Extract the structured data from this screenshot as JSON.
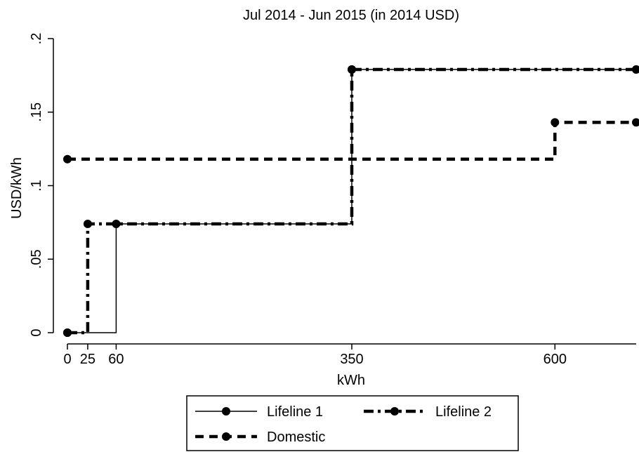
{
  "chart_data": {
    "type": "line",
    "title": "Jul 2014 - Jun 2015 (in 2014 USD)",
    "xlabel": "kWh",
    "ylabel": "USD/kWh",
    "xlim": [
      0,
      700
    ],
    "ylim": [
      0,
      0.2
    ],
    "x_ticks": [
      0,
      25,
      60,
      350,
      600
    ],
    "x_tick_labels": [
      "0",
      "25",
      "60",
      "350",
      "600"
    ],
    "y_ticks": [
      0,
      0.05,
      0.1,
      0.15,
      0.2
    ],
    "y_tick_labels": [
      "0",
      ".05",
      ".1",
      ".15",
      ".2"
    ],
    "grid": false,
    "legend_position": "bottom",
    "series": [
      {
        "name": "Lifeline 1",
        "style": "solid",
        "color": "#000000",
        "points": [
          [
            0,
            0
          ],
          [
            60,
            0.074
          ],
          [
            350,
            0.179
          ],
          [
            700,
            0.179
          ]
        ],
        "step_path": [
          [
            0,
            0
          ],
          [
            60,
            0
          ],
          [
            60,
            0.074
          ],
          [
            350,
            0.074
          ],
          [
            350,
            0.179
          ],
          [
            700,
            0.179
          ]
        ]
      },
      {
        "name": "Lifeline 2",
        "style": "dashdot",
        "color": "#000000",
        "points": [
          [
            0,
            0
          ],
          [
            25,
            0.074
          ],
          [
            350,
            0.179
          ],
          [
            700,
            0.179
          ]
        ],
        "step_path": [
          [
            0,
            0
          ],
          [
            25,
            0
          ],
          [
            25,
            0.074
          ],
          [
            350,
            0.074
          ],
          [
            350,
            0.179
          ],
          [
            700,
            0.179
          ]
        ]
      },
      {
        "name": "Domestic",
        "style": "dash",
        "color": "#000000",
        "points": [
          [
            0,
            0.118
          ],
          [
            600,
            0.143
          ],
          [
            700,
            0.143
          ]
        ],
        "step_path": [
          [
            0,
            0.118
          ],
          [
            600,
            0.118
          ],
          [
            600,
            0.143
          ],
          [
            700,
            0.143
          ]
        ]
      }
    ]
  }
}
